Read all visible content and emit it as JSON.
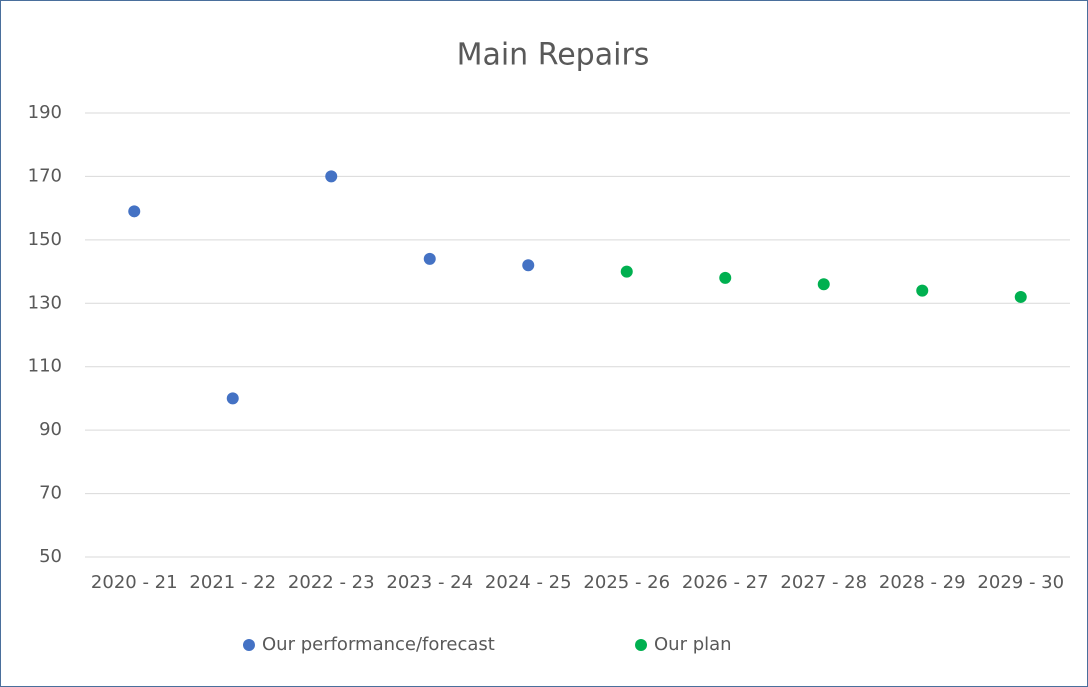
{
  "chart_data": {
    "type": "scatter",
    "title": "Main Repairs",
    "categories": [
      "2020 - 21",
      "2021 - 22",
      "2022 - 23",
      "2023 - 24",
      "2024 - 25",
      "2025 - 26",
      "2026 - 27",
      "2027 - 28",
      "2028 - 29",
      "2029 - 30"
    ],
    "series": [
      {
        "name": "Our performance/forecast",
        "color": "#4472c4",
        "values": [
          159,
          100,
          170,
          144,
          142,
          null,
          null,
          null,
          null,
          null
        ]
      },
      {
        "name": "Our plan",
        "color": "#00b050",
        "values": [
          null,
          null,
          null,
          null,
          null,
          140,
          138,
          136,
          134,
          132
        ]
      }
    ],
    "ylim": [
      50,
      190
    ],
    "yticks": [
      50,
      70,
      90,
      110,
      130,
      150,
      170,
      190
    ],
    "grid": true,
    "legend": "bottom"
  }
}
